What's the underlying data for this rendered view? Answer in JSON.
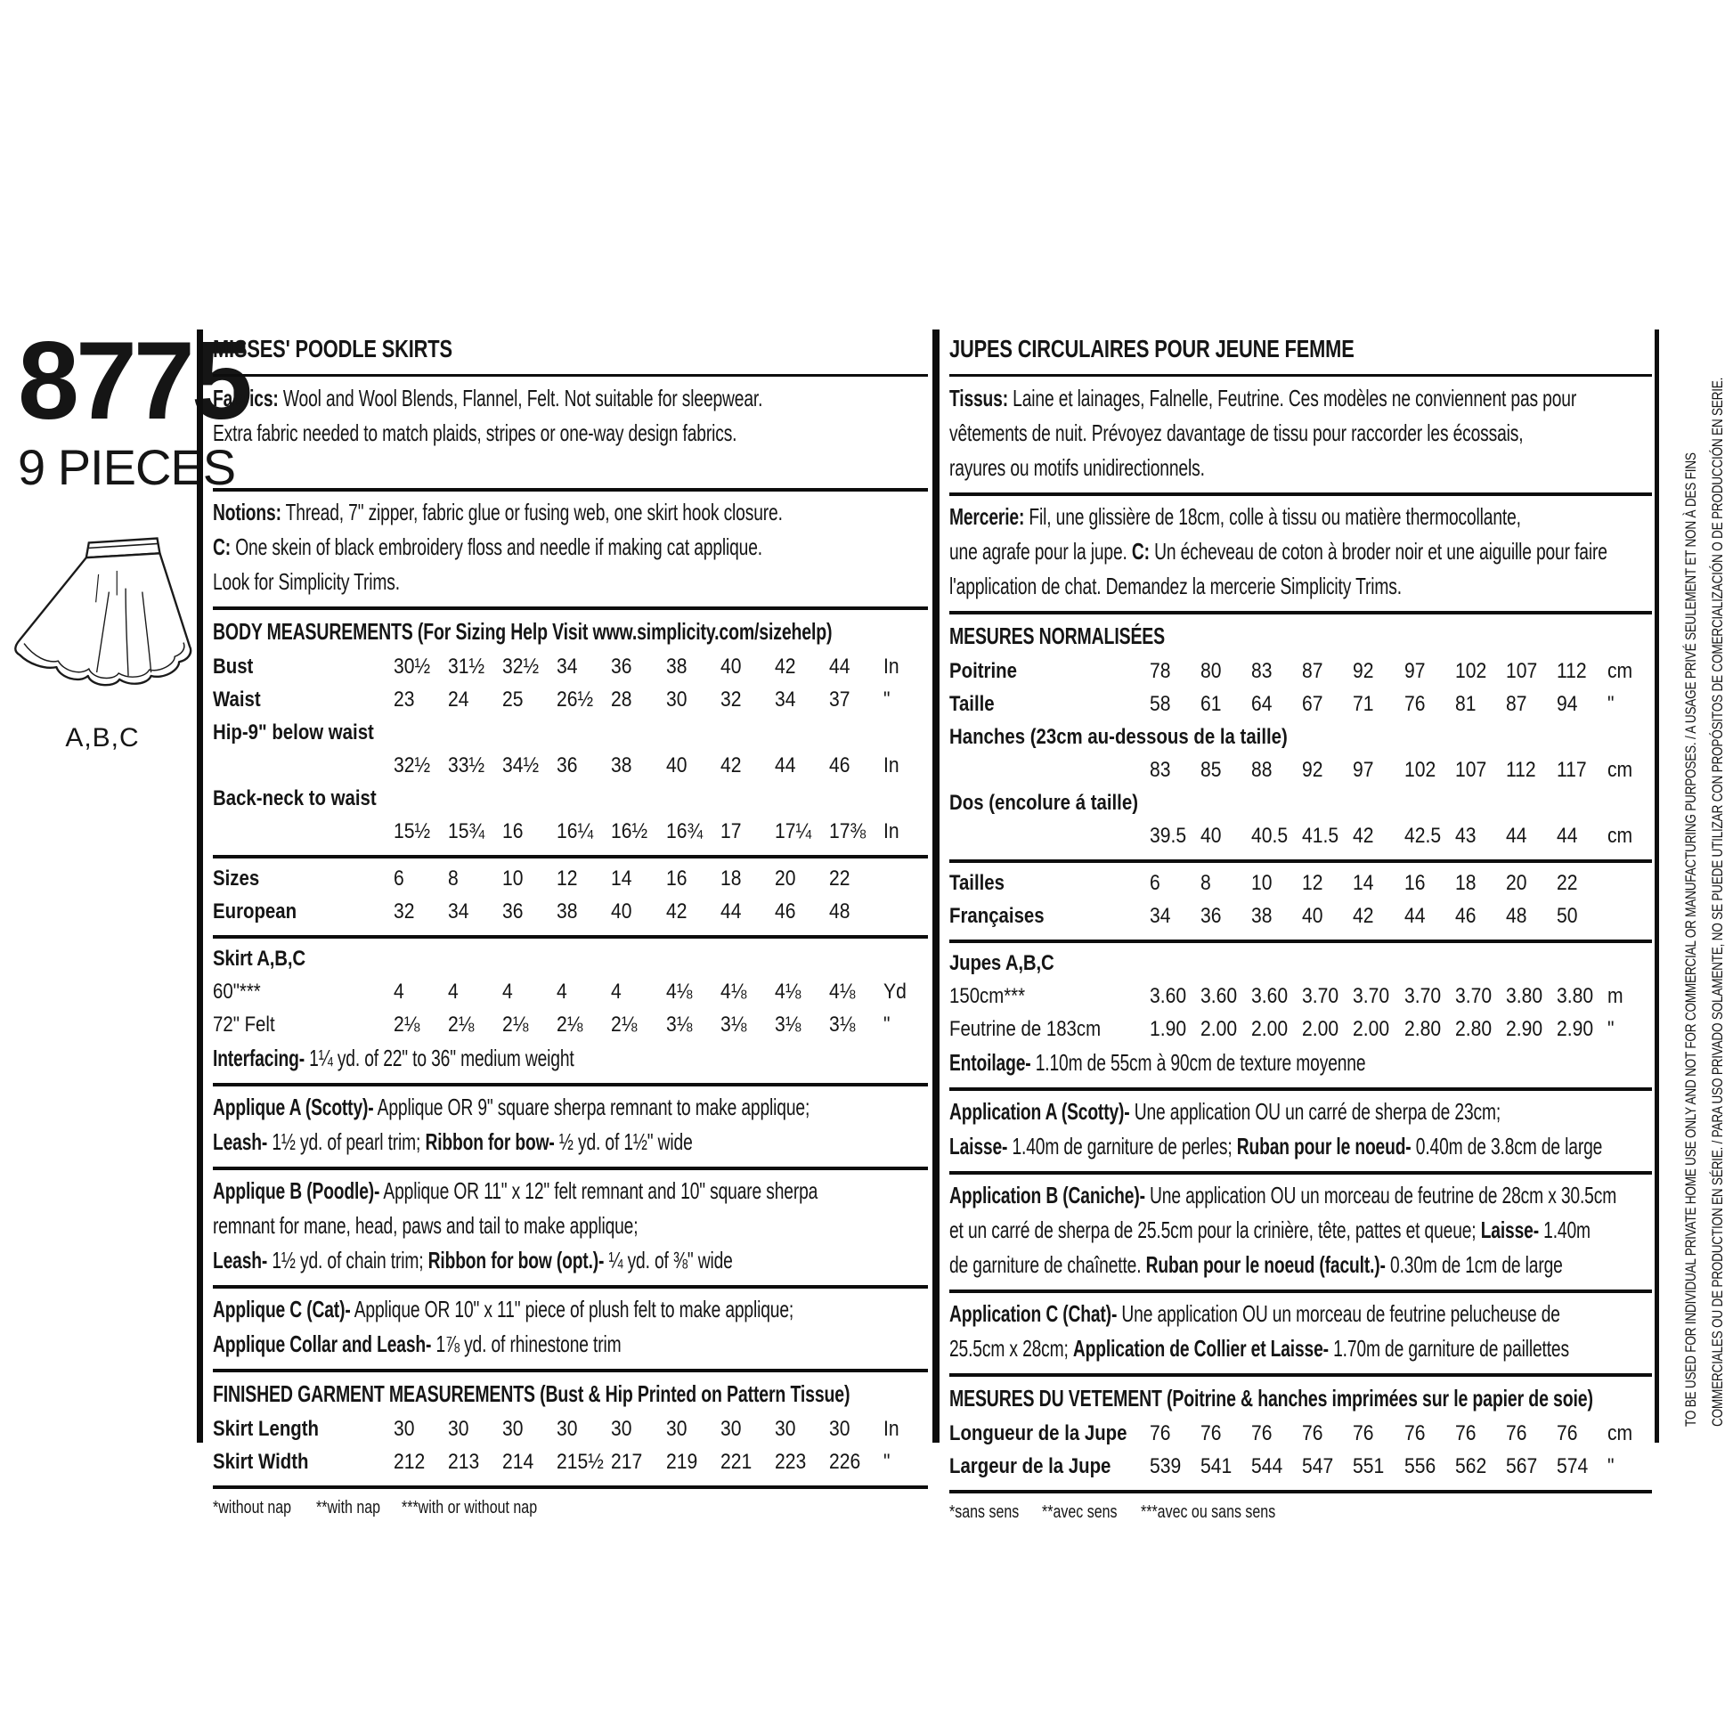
{
  "colors": {
    "ink": "#151515",
    "paper": "#ffffff"
  },
  "page": {
    "pattern_number": "8775",
    "pieces_label": "9 PIECES",
    "views_label": "A,B,C"
  },
  "vertical_notice": {
    "line1": "TO BE USED FOR INDIVIDUAL PRIVATE HOME USE ONLY AND NOT FOR COMMERCIAL OR MANUFACTURING PURPOSES. / A USAGE PRIVÉ SEULEMENT ET NON À DES FINS",
    "line2": "COMMERCIALES OU DE PRODUCTION EN SÉRIE. / PARA USO PRIVADO SOLAMENTE, NO SE PUEDE UTILIZAR CON PROPÓSITOS DE COMERCIALIZACIÓN O DE PRODUCCIÓN EN SERIE."
  },
  "panels": [
    {
      "name": "english",
      "sections": [
        {
          "type": "title",
          "text": "MISSES' POODLE SKIRTS"
        },
        {
          "type": "para",
          "min_lines": 3,
          "lines": [
            [
              {
                "b": "Fabrics:"
              },
              {
                "r": " Wool and Wool Blends, Flannel, Felt. Not suitable for sleepwear."
              }
            ],
            [
              {
                "r": "Extra fabric needed to match plaids, stripes or one-way design fabrics."
              }
            ]
          ]
        },
        {
          "type": "para",
          "lines": [
            [
              {
                "b": "Notions:"
              },
              {
                "r": " Thread, 7\" zipper, fabric glue or fusing web, one skirt hook closure."
              }
            ],
            [
              {
                "b": "C:"
              },
              {
                "r": " One skein of black embroidery floss and needle if making cat applique."
              }
            ],
            [
              {
                "r": "Look for Simplicity Trims."
              }
            ]
          ]
        },
        {
          "type": "header",
          "text": "BODY MEASUREMENTS (For Sizing Help Visit www.simplicity.com/sizehelp)"
        },
        {
          "type": "rows",
          "rows": [
            {
              "label": "Bust",
              "bold": true,
              "values": [
                "30½",
                "31½",
                "32½",
                "34",
                "36",
                "38",
                "40",
                "42",
                "44"
              ],
              "unit": "In"
            },
            {
              "label": "Waist",
              "bold": true,
              "values": [
                "23",
                "24",
                "25",
                "26½",
                "28",
                "30",
                "32",
                "34",
                "37"
              ],
              "unit": "\""
            },
            {
              "label": "Hip-9\" below waist",
              "bold": true,
              "values": [],
              "unit": ""
            },
            {
              "label": "",
              "bold": false,
              "values": [
                "32½",
                "33½",
                "34½",
                "36",
                "38",
                "40",
                "42",
                "44",
                "46"
              ],
              "unit": "In"
            },
            {
              "label": "Back-neck to waist",
              "bold": true,
              "values": [],
              "unit": ""
            },
            {
              "label": "",
              "bold": false,
              "values": [
                "15½",
                "15¾",
                "16",
                "16¼",
                "16½",
                "16¾",
                "17",
                "17¼",
                "17⅜"
              ],
              "unit": "In"
            }
          ]
        },
        {
          "type": "rows",
          "rows": [
            {
              "label": "Sizes",
              "bold": true,
              "values": [
                "6",
                "8",
                "10",
                "12",
                "14",
                "16",
                "18",
                "20",
                "22"
              ],
              "unit": ""
            },
            {
              "label": "European",
              "bold": true,
              "values": [
                "32",
                "34",
                "36",
                "38",
                "40",
                "42",
                "44",
                "46",
                "48"
              ],
              "unit": ""
            }
          ]
        },
        {
          "type": "rows",
          "header": "Skirt A,B,C",
          "rows": [
            {
              "label": "60\"***",
              "bold": false,
              "values": [
                "4",
                "4",
                "4",
                "4",
                "4",
                "4⅛",
                "4⅛",
                "4⅛",
                "4⅛"
              ],
              "unit": "Yd"
            },
            {
              "label": "72\" Felt",
              "bold": false,
              "values": [
                "2⅛",
                "2⅛",
                "2⅛",
                "2⅛",
                "2⅛",
                "3⅛",
                "3⅛",
                "3⅛",
                "3⅛"
              ],
              "unit": "\""
            }
          ],
          "after": [
            [
              {
                "b": "Interfacing-"
              },
              {
                "r": " 1¼ yd. of 22\" to 36\" medium weight"
              }
            ]
          ]
        },
        {
          "type": "para",
          "lines": [
            [
              {
                "b": "Applique A (Scotty)-"
              },
              {
                "r": " Applique OR 9\" square sherpa remnant to make applique;"
              }
            ],
            [
              {
                "b": "Leash-"
              },
              {
                "r": " 1½ yd. of pearl trim; "
              },
              {
                "b": "Ribbon for bow-"
              },
              {
                "r": " ½ yd. of 1½\" wide"
              }
            ]
          ]
        },
        {
          "type": "para",
          "lines": [
            [
              {
                "b": "Applique B (Poodle)-"
              },
              {
                "r": " Applique OR 11\" x 12\" felt remnant and 10\" square sherpa"
              }
            ],
            [
              {
                "r": "remnant for mane, head, paws and tail to make applique;"
              }
            ],
            [
              {
                "b": "Leash-"
              },
              {
                "r": " 1½ yd. of chain trim; "
              },
              {
                "b": "Ribbon for bow (opt.)-"
              },
              {
                "r": " ¼ yd. of ⅜\" wide"
              }
            ]
          ]
        },
        {
          "type": "para",
          "lines": [
            [
              {
                "b": "Applique C (Cat)-"
              },
              {
                "r": " Applique OR 10\" x 11\" piece of plush felt to make applique;"
              }
            ],
            [
              {
                "b": "Applique Collar and Leash-"
              },
              {
                "r": " 1⅞ yd. of rhinestone trim"
              }
            ]
          ]
        },
        {
          "type": "header",
          "text": "FINISHED GARMENT MEASUREMENTS (Bust & Hip Printed on Pattern Tissue)"
        },
        {
          "type": "rows",
          "rows": [
            {
              "label": "Skirt Length",
              "bold": true,
              "values": [
                "30",
                "30",
                "30",
                "30",
                "30",
                "30",
                "30",
                "30",
                "30"
              ],
              "unit": "In"
            },
            {
              "label": "Skirt Width",
              "bold": true,
              "values": [
                "212",
                "213",
                "214",
                "215½",
                "217",
                "219",
                "221",
                "223",
                "226"
              ],
              "unit": "\""
            }
          ]
        },
        {
          "type": "footnote",
          "items": [
            "*without nap",
            "**with nap",
            "***with or without nap"
          ]
        }
      ]
    },
    {
      "name": "french",
      "sections": [
        {
          "type": "title",
          "text": "JUPES CIRCULAIRES POUR JEUNE FEMME"
        },
        {
          "type": "para",
          "lines": [
            [
              {
                "b": "Tissus:"
              },
              {
                "r": " Laine et lainages, Falnelle, Feutrine. Ces modèles ne conviennent pas pour"
              }
            ],
            [
              {
                "r": "vêtements de nuit. Prévoyez davantage de tissu pour raccorder les écossais,"
              }
            ],
            [
              {
                "r": "rayures ou motifs unidirectionnels."
              }
            ]
          ]
        },
        {
          "type": "para",
          "lines": [
            [
              {
                "b": "Mercerie:"
              },
              {
                "r": " Fil, une glissière de 18cm, colle à tissu ou matière thermocollante,"
              }
            ],
            [
              {
                "r": "une agrafe pour la jupe. "
              },
              {
                "b": "C:"
              },
              {
                "r": " Un écheveau de coton à broder noir et une aiguille pour faire"
              }
            ],
            [
              {
                "r": "l'application de chat. Demandez la mercerie Simplicity Trims."
              }
            ]
          ]
        },
        {
          "type": "header",
          "text": "MESURES NORMALISÉES"
        },
        {
          "type": "rows",
          "rows": [
            {
              "label": "Poitrine",
              "bold": true,
              "values": [
                "78",
                "80",
                "83",
                "87",
                "92",
                "97",
                "102",
                "107",
                "112"
              ],
              "unit": "cm"
            },
            {
              "label": "Taille",
              "bold": true,
              "values": [
                "58",
                "61",
                "64",
                "67",
                "71",
                "76",
                "81",
                "87",
                "94"
              ],
              "unit": "\""
            },
            {
              "label": "Hanches (23cm au-dessous de la taille)",
              "bold": true,
              "values": [],
              "unit": ""
            },
            {
              "label": "",
              "bold": false,
              "values": [
                "83",
                "85",
                "88",
                "92",
                "97",
                "102",
                "107",
                "112",
                "117"
              ],
              "unit": "cm"
            },
            {
              "label": "Dos (encolure á taille)",
              "bold": true,
              "values": [],
              "unit": ""
            },
            {
              "label": "",
              "bold": false,
              "values": [
                "39.5",
                "40",
                "40.5",
                "41.5",
                "42",
                "42.5",
                "43",
                "44",
                "44"
              ],
              "unit": "cm"
            }
          ]
        },
        {
          "type": "rows",
          "rows": [
            {
              "label": "Tailles",
              "bold": true,
              "values": [
                "6",
                "8",
                "10",
                "12",
                "14",
                "16",
                "18",
                "20",
                "22"
              ],
              "unit": ""
            },
            {
              "label": "Françaises",
              "bold": true,
              "values": [
                "34",
                "36",
                "38",
                "40",
                "42",
                "44",
                "46",
                "48",
                "50"
              ],
              "unit": ""
            }
          ]
        },
        {
          "type": "rows",
          "header": "Jupes A,B,C",
          "rows": [
            {
              "label": "150cm***",
              "bold": false,
              "values": [
                "3.60",
                "3.60",
                "3.60",
                "3.70",
                "3.70",
                "3.70",
                "3.70",
                "3.80",
                "3.80"
              ],
              "unit": "m"
            },
            {
              "label": "Feutrine de 183cm",
              "bold": false,
              "values": [
                "1.90",
                "2.00",
                "2.00",
                "2.00",
                "2.00",
                "2.80",
                "2.80",
                "2.90",
                "2.90"
              ],
              "unit": "\""
            }
          ],
          "after": [
            [
              {
                "b": "Entoilage-"
              },
              {
                "r": " 1.10m de 55cm à 90cm de texture moyenne"
              }
            ]
          ]
        },
        {
          "type": "para",
          "lines": [
            [
              {
                "b": "Application A (Scotty)-"
              },
              {
                "r": " Une application OU un carré de sherpa de 23cm;"
              }
            ],
            [
              {
                "b": "Laisse-"
              },
              {
                "r": " 1.40m de garniture de perles; "
              },
              {
                "b": "Ruban pour le noeud-"
              },
              {
                "r": " 0.40m de 3.8cm de large"
              }
            ]
          ]
        },
        {
          "type": "para",
          "lines": [
            [
              {
                "b": "Application B (Caniche)-"
              },
              {
                "r": " Une application OU un morceau de feutrine de 28cm x 30.5cm"
              }
            ],
            [
              {
                "r": "et un carré de sherpa de 25.5cm pour la crinière, tête, pattes et queue; "
              },
              {
                "b": "Laisse-"
              },
              {
                "r": " 1.40m"
              }
            ],
            [
              {
                "r": "de garniture de chaînette. "
              },
              {
                "b": "Ruban pour le noeud (facult.)-"
              },
              {
                "r": " 0.30m de 1cm de large"
              }
            ]
          ]
        },
        {
          "type": "para",
          "lines": [
            [
              {
                "b": "Application C (Chat)-"
              },
              {
                "r": " Une application OU un morceau de feutrine pelucheuse de"
              }
            ],
            [
              {
                "r": "25.5cm x 28cm; "
              },
              {
                "b": "Application de Collier et Laisse-"
              },
              {
                "r": " 1.70m de garniture de paillettes"
              }
            ]
          ]
        },
        {
          "type": "header",
          "text": "MESURES DU VETEMENT (Poitrine & hanches imprimées sur le papier de soie)"
        },
        {
          "type": "rows",
          "rows": [
            {
              "label": "Longueur de la Jupe",
              "bold": true,
              "values": [
                "76",
                "76",
                "76",
                "76",
                "76",
                "76",
                "76",
                "76",
                "76"
              ],
              "unit": "cm"
            },
            {
              "label": "Largeur de la Jupe",
              "bold": true,
              "values": [
                "539",
                "541",
                "544",
                "547",
                "551",
                "556",
                "562",
                "567",
                "574"
              ],
              "unit": "\""
            }
          ]
        },
        {
          "type": "footnote",
          "items": [
            "*sans sens",
            "**avec sens",
            "***avec ou sans sens"
          ]
        }
      ]
    }
  ]
}
